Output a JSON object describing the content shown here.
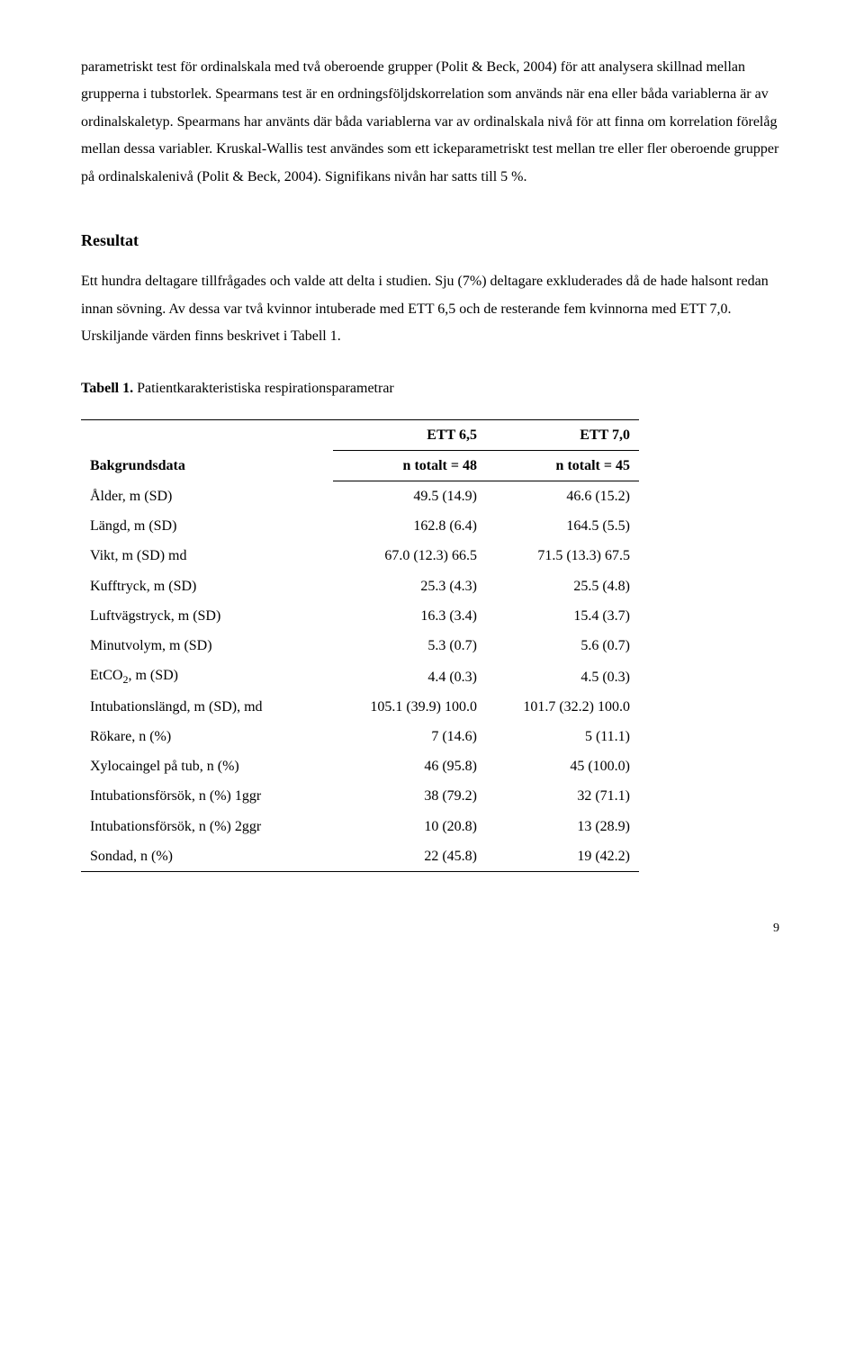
{
  "paragraphs": {
    "intro": "parametriskt test för ordinalskala med två oberoende grupper (Polit & Beck, 2004) för att analysera skillnad mellan grupperna i tubstorlek. Spearmans test är en ordningsföljdskorrelation som används när ena eller båda variablerna är av ordinalskaletyp. Spearmans har använts där båda variablerna var av ordinalskala nivå för att finna om korrelation förelåg mellan dessa variabler. Kruskal-Wallis test användes som ett ickeparametriskt test mellan tre eller fler oberoende grupper på ordinalskalenivå (Polit & Beck, 2004). Signifikans nivån har satts till 5 %.",
    "resultat_heading": "Resultat",
    "resultat_body": "Ett hundra deltagare tillfrågades och valde att delta i studien. Sju (7%) deltagare exkluderades då de hade halsont redan innan sövning. Av dessa var två kvinnor intuberade med ETT 6,5 och de resterande fem kvinnorna med ETT 7,0. Urskiljande värden finns beskrivet i Tabell 1."
  },
  "table": {
    "caption_bold": "Tabell 1.",
    "caption_rest": " Patientkarakteristiska respirationsparametrar",
    "head": {
      "col0": "Bakgrundsdata",
      "col1_r1": "ETT 6,5",
      "col2_r1": "ETT 7,0",
      "col1_r2": "n totalt = 48",
      "col2_r2": "n totalt = 45"
    },
    "rows": [
      {
        "label": "Ålder, m (SD)",
        "c1": "49.5 (14.9)",
        "c2": "46.6 (15.2)"
      },
      {
        "label": "Längd, m (SD)",
        "c1": "162.8 (6.4)",
        "c2": "164.5 (5.5)"
      },
      {
        "label": "Vikt, m (SD) md",
        "c1": "67.0 (12.3) 66.5",
        "c2": "71.5 (13.3) 67.5"
      },
      {
        "label": "Kufftryck, m (SD)",
        "c1": "25.3 (4.3)",
        "c2": "25.5 (4.8)"
      },
      {
        "label": "Luftvägstryck, m (SD)",
        "c1": "16.3 (3.4)",
        "c2": "15.4 (3.7)"
      },
      {
        "label": "Minutvolym, m (SD)",
        "c1": "5.3 (0.7)",
        "c2": "5.6 (0.7)"
      },
      {
        "label_html": "EtCO<span class=\"sub\">2</span>, m (SD)",
        "c1": "4.4 (0.3)",
        "c2": "4.5 (0.3)"
      },
      {
        "label": "Intubationslängd, m (SD), md",
        "c1": "105.1 (39.9) 100.0",
        "c2": "101.7 (32.2) 100.0"
      },
      {
        "label": "Rökare, n (%)",
        "c1": "7 (14.6)",
        "c2": "5 (11.1)"
      },
      {
        "label": "Xylocaingel på tub, n (%)",
        "c1": "46 (95.8)",
        "c2": "45 (100.0)"
      },
      {
        "label": "Intubationsförsök, n (%) 1ggr",
        "c1": "38 (79.2)",
        "c2": "32 (71.1)"
      },
      {
        "label": "Intubationsförsök, n (%) 2ggr",
        "c1": "10 (20.8)",
        "c2": "13 (28.9)"
      },
      {
        "label": "Sondad, n (%)",
        "c1": "22 (45.8)",
        "c2": "19 (42.2)"
      }
    ]
  },
  "page_number": "9"
}
